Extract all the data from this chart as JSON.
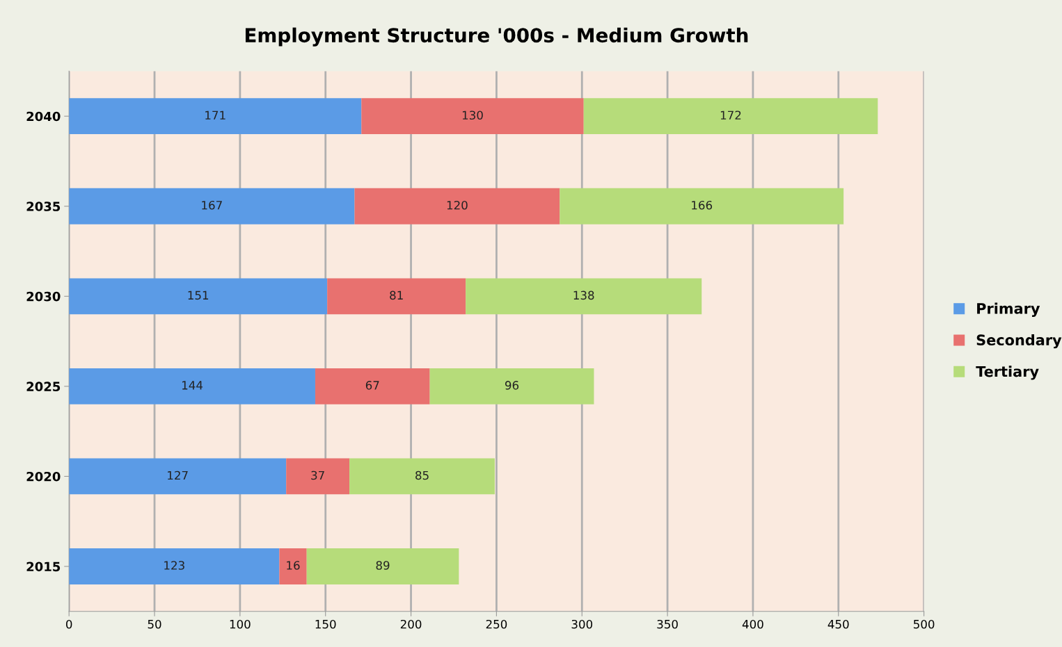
{
  "chart_data": {
    "type": "bar",
    "title": "Employment Structure '000s - Medium Growth",
    "orientation": "horizontal",
    "stacked": true,
    "categories": [
      "2040",
      "2035",
      "2030",
      "2025",
      "2020",
      "2015"
    ],
    "series": [
      {
        "name": "Primary",
        "color": "#5b9be6",
        "values": [
          171,
          167,
          151,
          144,
          127,
          123
        ]
      },
      {
        "name": "Secondary",
        "color": "#e8716f",
        "values": [
          130,
          120,
          81,
          67,
          37,
          16
        ]
      },
      {
        "name": "Tertiary",
        "color": "#b6dc7a",
        "values": [
          172,
          166,
          138,
          96,
          85,
          89
        ]
      }
    ],
    "xlim": [
      0,
      500
    ],
    "xticks": [
      0,
      50,
      100,
      150,
      200,
      250,
      300,
      350,
      400,
      450,
      500
    ],
    "grid": "x",
    "legend": "right",
    "data_labels": true
  }
}
